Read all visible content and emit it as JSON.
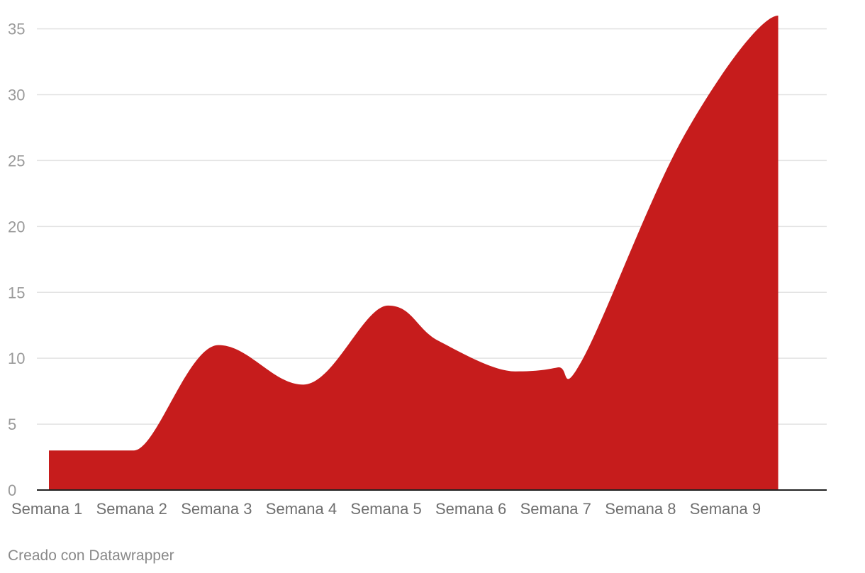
{
  "chart_data": {
    "type": "area",
    "categories": [
      "Semana 1",
      "Semana 2",
      "Semana 3",
      "Semana 4",
      "Semana 5",
      "Semana 6",
      "Semana 7",
      "Semana 8",
      "Semana 9"
    ],
    "x": [
      1,
      1.5,
      2,
      3,
      4,
      5,
      5.6,
      6.5,
      7,
      7.3,
      8.5,
      9.6
    ],
    "y": [
      3,
      3,
      3,
      11,
      8,
      14,
      11.3,
      9,
      9.3,
      10,
      27,
      36
    ],
    "title": "",
    "xlabel": "",
    "ylabel": "",
    "ylim": [
      0,
      36
    ],
    "yticks": [
      0,
      5,
      10,
      15,
      20,
      25,
      30,
      35
    ],
    "grid": true,
    "fill_color": "#c61c1c"
  },
  "footer": {
    "credit": "Creado con Datawrapper"
  }
}
